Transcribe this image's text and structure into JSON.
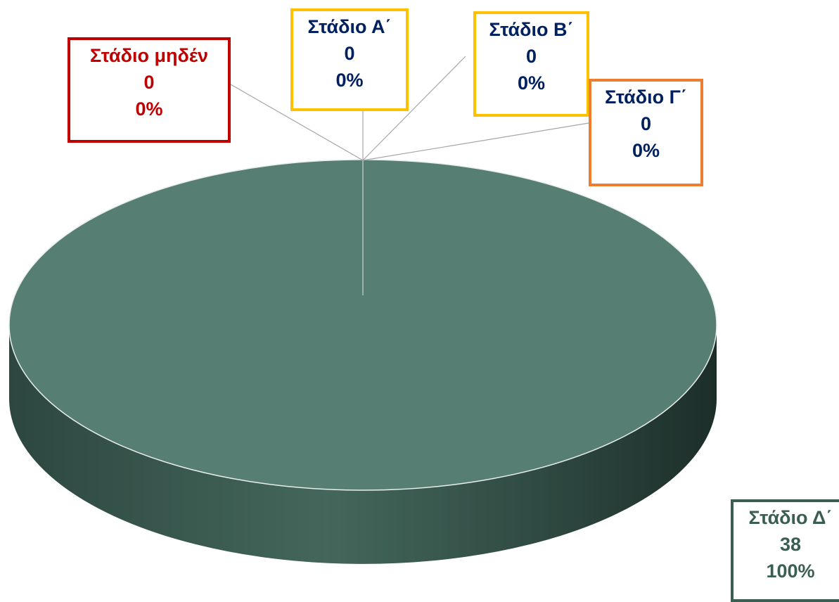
{
  "chart_data": {
    "type": "pie",
    "style": "3d",
    "categories": [
      "Στάδιο μηδέν",
      "Στάδιο Α΄",
      "Στάδιο Β΄",
      "Στάδιο Γ΄",
      "Στάδιο Δ΄"
    ],
    "values": [
      0,
      0,
      0,
      0,
      38
    ],
    "percentages": [
      "0%",
      "0%",
      "0%",
      "0%",
      "100%"
    ],
    "labels": [
      {
        "name": "Στάδιο μηδέν",
        "value": "0",
        "percent": "0%",
        "border_color": "#c00000",
        "text_color": "#c00000"
      },
      {
        "name": "Στάδιο Α΄",
        "value": "0",
        "percent": "0%",
        "border_color": "#ffc000",
        "text_color": "#002060"
      },
      {
        "name": "Στάδιο Β΄",
        "value": "0",
        "percent": "0%",
        "border_color": "#ffc000",
        "text_color": "#002060"
      },
      {
        "name": "Στάδιο Γ΄",
        "value": "0",
        "percent": "0%",
        "border_color": "#ed7d31",
        "text_color": "#002060"
      },
      {
        "name": "Στάδιο Δ΄",
        "value": "38",
        "percent": "100%",
        "border_color": "#3b5e52",
        "text_color": "#3b5e52"
      }
    ],
    "colors": {
      "pie_top": "#577e72",
      "pie_side_dark": "#22352f",
      "pie_side_mid": "#3e5e53",
      "leader_line": "#a6a6a6"
    }
  }
}
